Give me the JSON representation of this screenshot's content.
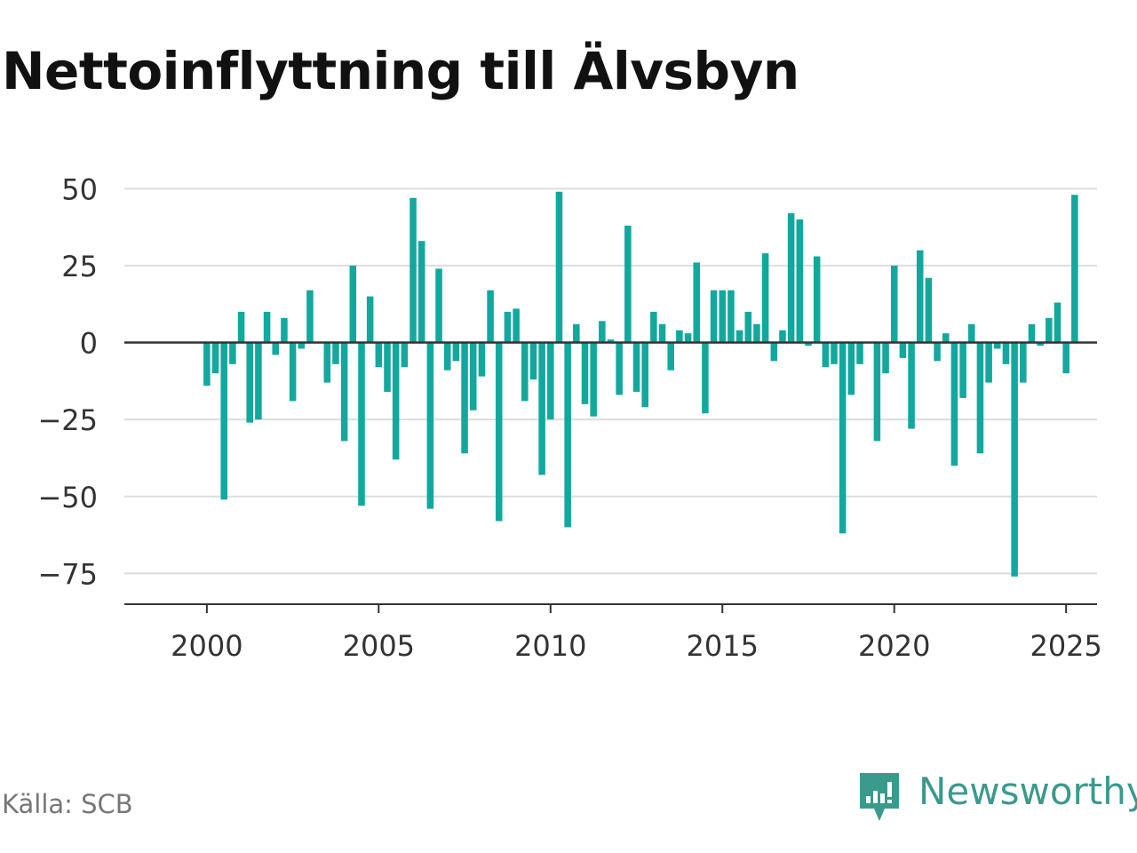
{
  "title": "Nettoinflyttning till Älvsbyn",
  "source": "Källa: SCB",
  "brand": {
    "name": "Newsworthy",
    "icon": "bar-chart-speech-bubble-icon",
    "color": "#3a9a8c"
  },
  "colors": {
    "bar": "#13a89e",
    "grid": "#dddddd",
    "zero_line": "#333333",
    "axis": "#333333",
    "text": "#333333"
  },
  "chart_data": {
    "type": "bar",
    "ylim": [
      -85,
      55
    ],
    "xlim": [
      1997.6,
      2025.9
    ],
    "yticks": [
      50,
      25,
      0,
      -25,
      -50,
      -75
    ],
    "ytick_labels": [
      "50",
      "25",
      "0",
      "−25",
      "−50",
      "−75"
    ],
    "xticks": [
      2000,
      2005,
      2010,
      2015,
      2020,
      2025
    ],
    "xtick_labels": [
      "2000",
      "2005",
      "2010",
      "2015",
      "2020",
      "2025"
    ],
    "grid": true,
    "x": [
      2000.0,
      2000.25,
      2000.5,
      2000.75,
      2001.0,
      2001.25,
      2001.5,
      2001.75,
      2002.0,
      2002.25,
      2002.5,
      2002.75,
      2003.0,
      2003.25,
      2003.5,
      2003.75,
      2004.0,
      2004.25,
      2004.5,
      2004.75,
      2005.0,
      2005.25,
      2005.5,
      2005.75,
      2006.0,
      2006.25,
      2006.5,
      2006.75,
      2007.0,
      2007.25,
      2007.5,
      2007.75,
      2008.0,
      2008.25,
      2008.5,
      2008.75,
      2009.0,
      2009.25,
      2009.5,
      2009.75,
      2010.0,
      2010.25,
      2010.5,
      2010.75,
      2011.0,
      2011.25,
      2011.5,
      2011.75,
      2012.0,
      2012.25,
      2012.5,
      2012.75,
      2013.0,
      2013.25,
      2013.5,
      2013.75,
      2014.0,
      2014.25,
      2014.5,
      2014.75,
      2015.0,
      2015.25,
      2015.5,
      2015.75,
      2016.0,
      2016.25,
      2016.5,
      2016.75,
      2017.0,
      2017.25,
      2017.5,
      2017.75,
      2018.0,
      2018.25,
      2018.5,
      2018.75,
      2019.0,
      2019.25,
      2019.5,
      2019.75,
      2020.0,
      2020.25,
      2020.5,
      2020.75,
      2021.0,
      2021.25,
      2021.5,
      2021.75,
      2022.0,
      2022.25,
      2022.5,
      2022.75,
      2023.0,
      2023.25,
      2023.5,
      2023.75,
      2024.0,
      2024.25,
      2024.5,
      2024.75,
      2025.0,
      2025.25
    ],
    "values": [
      -14,
      -10,
      -51,
      -7,
      10,
      -26,
      -25,
      10,
      -4,
      8,
      -19,
      -2,
      17,
      0,
      -13,
      -7,
      -32,
      25,
      -53,
      15,
      -8,
      -16,
      -38,
      -8,
      47,
      33,
      -54,
      24,
      -9,
      -6,
      -36,
      -22,
      -11,
      17,
      -58,
      10,
      11,
      -19,
      -12,
      -43,
      -25,
      49,
      -60,
      6,
      -20,
      -24,
      7,
      1,
      -17,
      38,
      -16,
      -21,
      10,
      6,
      -9,
      4,
      3,
      26,
      -23,
      17,
      17,
      17,
      4,
      10,
      6,
      29,
      -6,
      4,
      42,
      40,
      -1,
      28,
      -8,
      -7,
      -62,
      -17,
      -7,
      0,
      -32,
      -10,
      25,
      -5,
      -28,
      30,
      21,
      -6,
      3,
      -40,
      -18,
      6,
      -36,
      -13,
      -2,
      -7,
      -76,
      -13,
      6,
      -1,
      8,
      13,
      -10,
      48
    ]
  }
}
